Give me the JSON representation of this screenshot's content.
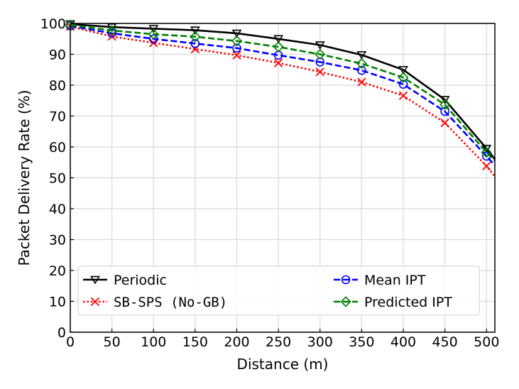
{
  "chart_data": {
    "type": "line",
    "title": "",
    "xlabel": "Distance (m)",
    "ylabel": "Packet Delivery Rate (%)",
    "xlim": [
      0,
      510
    ],
    "ylim": [
      0,
      100
    ],
    "xticks": [
      0,
      50,
      100,
      150,
      200,
      250,
      300,
      350,
      400,
      450,
      500
    ],
    "yticks": [
      0,
      10,
      20,
      30,
      40,
      50,
      60,
      70,
      80,
      90,
      100
    ],
    "grid": true,
    "legend_placement": "lower-center",
    "x": [
      0,
      50,
      100,
      150,
      200,
      250,
      300,
      350,
      400,
      450,
      500
    ],
    "series": [
      {
        "name": "Periodic",
        "color": "#000000",
        "linestyle": "solid",
        "marker": "triangle-down",
        "values": [
          99.8,
          98.8,
          98.3,
          97.8,
          96.8,
          95.0,
          93.0,
          89.8,
          85.0,
          75.3,
          59.5
        ],
        "end_value": 56.0
      },
      {
        "name": "SB-SPS (No-GB)",
        "color": "#ff0000",
        "linestyle": "dotted",
        "marker": "x",
        "mono_label": true,
        "values": [
          99.0,
          95.8,
          93.7,
          91.7,
          89.7,
          87.2,
          84.3,
          81.0,
          76.6,
          67.8,
          53.8
        ],
        "end_value": 50.5
      },
      {
        "name": "Mean IPT",
        "color": "#0000ff",
        "linestyle": "dashed",
        "marker": "circle",
        "values": [
          99.2,
          96.8,
          95.0,
          93.5,
          92.0,
          89.7,
          87.5,
          84.8,
          80.3,
          71.5,
          57.0
        ],
        "end_value": 54.0
      },
      {
        "name": "Predicted IPT",
        "color": "#008000",
        "linestyle": "dashed",
        "marker": "diamond",
        "values": [
          99.5,
          97.7,
          96.5,
          95.7,
          94.3,
          92.4,
          90.0,
          87.0,
          82.5,
          73.7,
          58.2
        ],
        "end_value": 55.5
      }
    ]
  }
}
